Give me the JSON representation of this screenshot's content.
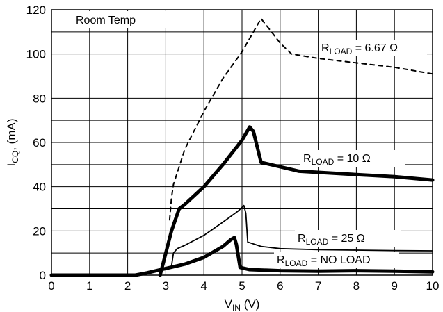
{
  "chart_data": {
    "type": "line",
    "annotation": "Room Temp",
    "xlabel": {
      "main": "V",
      "sub": "IN",
      "unit": " (V)"
    },
    "ylabel": {
      "main": "I",
      "sub": "CQ",
      "unit": ", (mA)"
    },
    "xlim": [
      0,
      10
    ],
    "ylim": [
      0,
      120
    ],
    "xticks": [
      0,
      1,
      2,
      3,
      4,
      5,
      6,
      7,
      8,
      9,
      10
    ],
    "yticks": [
      0,
      20,
      40,
      60,
      80,
      100,
      120
    ],
    "grid": true,
    "series": [
      {
        "key": "rload_6_67",
        "label_main": "R",
        "label_sub": "LOAD",
        "label_rest": " = 6.67 Ω",
        "style": "dashed",
        "color": "#000000",
        "x": [
          3.1,
          3.15,
          3.2,
          3.5,
          4.0,
          4.5,
          5.0,
          5.5,
          6.0,
          6.3,
          7.0,
          8.0,
          9.0,
          10.0
        ],
        "y": [
          25,
          35,
          41,
          57,
          74,
          89,
          101,
          116,
          105,
          100,
          98,
          96,
          94,
          91
        ]
      },
      {
        "key": "rload_10",
        "label_main": "R",
        "label_sub": "LOAD",
        "label_rest": " = 10 Ω",
        "style": "thick",
        "color": "#000000",
        "x": [
          2.85,
          3.0,
          3.15,
          3.35,
          3.5,
          4.0,
          4.5,
          5.0,
          5.2,
          5.3,
          5.5,
          6.0,
          6.5,
          7.0,
          8.0,
          9.0,
          10.0
        ],
        "y": [
          0,
          10,
          20,
          30,
          32,
          40,
          50,
          61,
          67,
          65,
          51,
          49,
          47,
          46.5,
          45.5,
          44.5,
          43
        ]
      },
      {
        "key": "rload_25",
        "label_main": "R",
        "label_sub": "LOAD",
        "label_rest": " = 25 Ω",
        "style": "thin",
        "color": "#000000",
        "x": [
          3.15,
          3.2,
          3.3,
          3.5,
          4.0,
          4.5,
          4.9,
          5.05,
          5.1,
          5.15,
          5.5,
          6.0,
          7.0,
          8.0,
          9.0,
          10.0
        ],
        "y": [
          4,
          10,
          12,
          13.5,
          18,
          24,
          29,
          31.5,
          28,
          15,
          13,
          12,
          11.5,
          11.3,
          11.1,
          11
        ]
      },
      {
        "key": "rload_noload",
        "label_main": "R",
        "label_sub": "LOAD",
        "label_rest": " = NO LOAD",
        "style": "thick",
        "color": "#000000",
        "x": [
          0,
          1,
          2.2,
          2.5,
          3.0,
          3.5,
          4.0,
          4.5,
          4.7,
          4.8,
          4.85,
          4.95,
          5.2,
          6.0,
          7.0,
          8.0,
          9.0,
          10.0
        ],
        "y": [
          0,
          0,
          0,
          1,
          3,
          5,
          8,
          13,
          16,
          17,
          14,
          3.5,
          2.5,
          2,
          1.8,
          2,
          1.8,
          1.5
        ]
      }
    ]
  }
}
